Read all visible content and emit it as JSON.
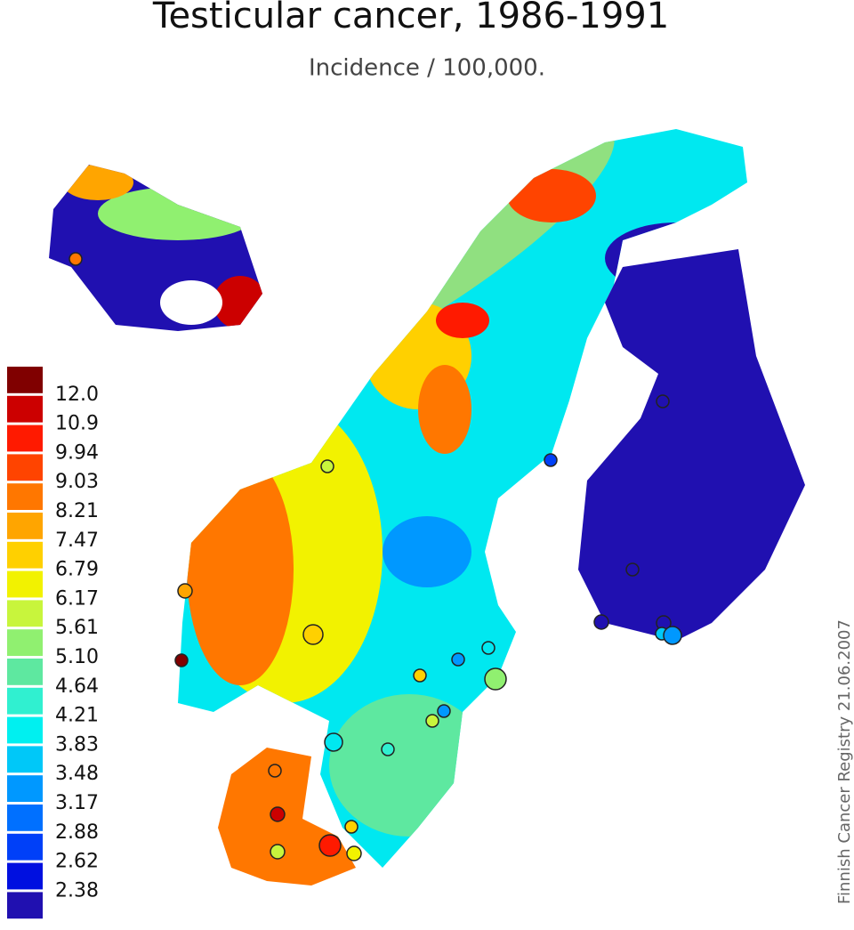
{
  "header": {
    "title": "Testicular cancer, 1986-1991",
    "subtitle": "Incidence / 100,000."
  },
  "legend": {
    "labels": [
      "12.0",
      "10.9",
      "9.94",
      "9.03",
      "8.21",
      "7.47",
      "6.79",
      "6.17",
      "5.61",
      "5.10",
      "4.64",
      "4.21",
      "3.83",
      "3.48",
      "3.17",
      "2.88",
      "2.62",
      "2.38"
    ],
    "colors": [
      "#800000",
      "#cc0000",
      "#ff1a00",
      "#ff4400",
      "#ff7700",
      "#ffa500",
      "#ffd000",
      "#f2f200",
      "#c8f53c",
      "#90f070",
      "#5ee8a0",
      "#30f0d0",
      "#00f0f0",
      "#00c8f8",
      "#0098ff",
      "#0070ff",
      "#0040f8",
      "#0010e0",
      "#2010b0"
    ]
  },
  "credit": "Finnish Cancer Registry 21.06.2007"
}
